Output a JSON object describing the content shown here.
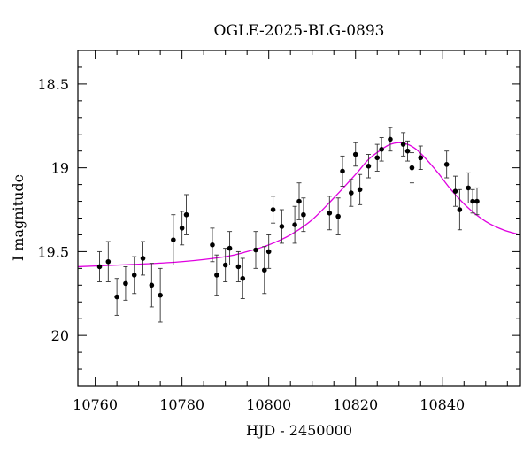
{
  "chart_data": {
    "type": "scatter",
    "title": "OGLE-2025-BLG-0893",
    "xlabel": "HJD - 2450000",
    "ylabel": "I magnitude",
    "xlim": [
      10756,
      10858
    ],
    "ylim": [
      20.3,
      18.3
    ],
    "y_inverted": true,
    "x_ticks": [
      10760,
      10780,
      10800,
      10820,
      10840
    ],
    "y_ticks": [
      18.5,
      19,
      19.5,
      20
    ],
    "x_tick_labels": [
      "10760",
      "10780",
      "10800",
      "10820",
      "10840"
    ],
    "y_tick_labels": [
      "18.5",
      "19",
      "19.5",
      "20"
    ],
    "grid": false,
    "colors": {
      "points": "#000000",
      "model": "#e000e0",
      "axes": "#000000"
    },
    "series": [
      {
        "kind": "data",
        "points": [
          [
            10761,
            19.59,
            0.09
          ],
          [
            10763,
            19.56,
            0.12
          ],
          [
            10765,
            19.77,
            0.11
          ],
          [
            10767,
            19.69,
            0.1
          ],
          [
            10769,
            19.64,
            0.11
          ],
          [
            10771,
            19.54,
            0.1
          ],
          [
            10773,
            19.7,
            0.13
          ],
          [
            10775,
            19.76,
            0.16
          ],
          [
            10778,
            19.43,
            0.15
          ],
          [
            10780,
            19.36,
            0.1
          ],
          [
            10781,
            19.28,
            0.12
          ],
          [
            10787,
            19.46,
            0.1
          ],
          [
            10788,
            19.64,
            0.12
          ],
          [
            10790,
            19.58,
            0.1
          ],
          [
            10791,
            19.48,
            0.1
          ],
          [
            10793,
            19.59,
            0.09
          ],
          [
            10794,
            19.66,
            0.12
          ],
          [
            10797,
            19.49,
            0.11
          ],
          [
            10799,
            19.61,
            0.14
          ],
          [
            10800,
            19.5,
            0.1
          ],
          [
            10801,
            19.25,
            0.08
          ],
          [
            10803,
            19.35,
            0.1
          ],
          [
            10806,
            19.34,
            0.11
          ],
          [
            10807,
            19.2,
            0.11
          ],
          [
            10808,
            19.28,
            0.1
          ],
          [
            10814,
            19.27,
            0.1
          ],
          [
            10816,
            19.29,
            0.11
          ],
          [
            10817,
            19.02,
            0.09
          ],
          [
            10819,
            19.15,
            0.08
          ],
          [
            10820,
            18.92,
            0.07
          ],
          [
            10821,
            19.13,
            0.09
          ],
          [
            10823,
            18.99,
            0.07
          ],
          [
            10825,
            18.94,
            0.08
          ],
          [
            10826,
            18.89,
            0.07
          ],
          [
            10828,
            18.83,
            0.07
          ],
          [
            10831,
            18.86,
            0.07
          ],
          [
            10832,
            18.9,
            0.06
          ],
          [
            10833,
            19.0,
            0.09
          ],
          [
            10835,
            18.94,
            0.07
          ],
          [
            10841,
            18.98,
            0.08
          ],
          [
            10843,
            19.14,
            0.09
          ],
          [
            10844,
            19.25,
            0.12
          ],
          [
            10846,
            19.12,
            0.09
          ],
          [
            10847,
            19.2,
            0.07
          ],
          [
            10848,
            19.2,
            0.08
          ]
        ]
      },
      {
        "kind": "model",
        "x": [
          10756,
          10770,
          10780,
          10790,
          10795,
          10800,
          10805,
          10810,
          10815,
          10820,
          10823,
          10826,
          10828,
          10830,
          10832,
          10834,
          10836,
          10839,
          10842,
          10846,
          10850,
          10854,
          10858
        ],
        "y": [
          19.59,
          19.575,
          19.56,
          19.53,
          19.5,
          19.46,
          19.4,
          19.31,
          19.18,
          19.04,
          18.95,
          18.89,
          18.86,
          18.85,
          18.86,
          18.89,
          18.94,
          19.03,
          19.13,
          19.24,
          19.32,
          19.37,
          19.4
        ]
      }
    ]
  }
}
